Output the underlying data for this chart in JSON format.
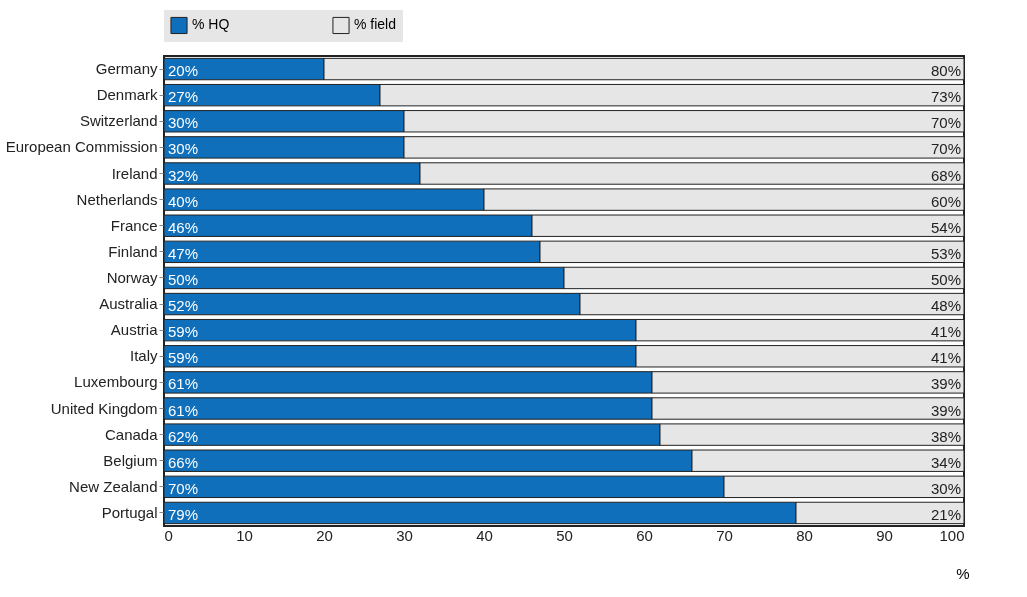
{
  "chart_data": {
    "type": "bar",
    "orientation": "horizontal",
    "stacked": true,
    "xlabel": "%",
    "categories": [
      "Germany",
      "Denmark",
      "Switzerland",
      "European Commission",
      "Ireland",
      "Netherlands",
      "France",
      "Finland",
      "Norway",
      "Australia",
      "Austria",
      "Italy",
      "Luxembourg",
      "United Kingdom",
      "Canada",
      "Belgium",
      "New Zealand",
      "Portugal"
    ],
    "series": [
      {
        "name": "% HQ",
        "color": "#0f6fba",
        "values": [
          20,
          27,
          30,
          30,
          32,
          40,
          46,
          47,
          50,
          52,
          59,
          59,
          61,
          61,
          62,
          66,
          70,
          79
        ],
        "value_labels": [
          "20%",
          "27%",
          "30%",
          "30%",
          "32%",
          "40%",
          "46%",
          "47%",
          "50%",
          "52%",
          "59%",
          "59%",
          "61%",
          "61%",
          "62%",
          "66%",
          "70%",
          "79%"
        ]
      },
      {
        "name": "% field",
        "color": "#e6e6e6",
        "values": [
          80,
          73,
          70,
          70,
          68,
          60,
          54,
          53,
          50,
          48,
          41,
          41,
          39,
          39,
          38,
          34,
          30,
          21
        ],
        "value_labels": [
          "80%",
          "73%",
          "70%",
          "70%",
          "68%",
          "60%",
          "54%",
          "53%",
          "50%",
          "48%",
          "41%",
          "41%",
          "39%",
          "39%",
          "38%",
          "34%",
          "30%",
          "21%"
        ]
      }
    ],
    "xlim": [
      0,
      100
    ],
    "xticks": [
      0,
      10,
      20,
      30,
      40,
      50,
      60,
      70,
      80,
      90,
      100
    ],
    "legend": "top",
    "grid": false
  }
}
